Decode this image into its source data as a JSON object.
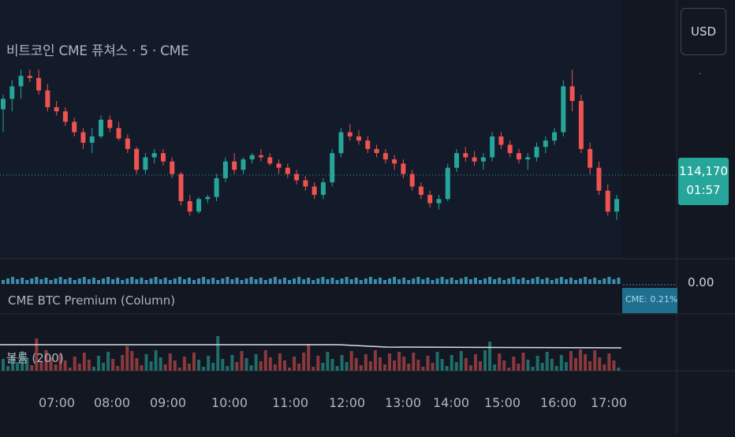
{
  "symbol_title": "비트코인 CME 퓨쳐스 · 5 · CME",
  "currency_button": "USD",
  "last_price": "114,170",
  "countdown": "01:57",
  "premium_indicator": {
    "label": "CME BTC Premium (Column)",
    "tag": "CME: 0.21%",
    "value": "0.00"
  },
  "volume_indicator": {
    "label": "볼륨 (200)"
  },
  "colors": {
    "background": "#131722",
    "up": "#26a69a",
    "down": "#ef5350",
    "premium": "#3a8fb0"
  },
  "chart_data": {
    "type": "candlestick",
    "x_ticks": [
      "07:00",
      "08:00",
      "09:00",
      "10:00",
      "11:00",
      "12:00",
      "13:00",
      "14:00",
      "15:00",
      "16:00",
      "17:00"
    ],
    "last_value": 114170,
    "candles_ohlc_relative": [
      [
        171,
        178,
        160,
        176
      ],
      [
        176,
        185,
        170,
        182
      ],
      [
        182,
        190,
        176,
        187
      ],
      [
        187,
        190,
        184,
        186
      ],
      [
        186,
        190,
        178,
        180
      ],
      [
        180,
        183,
        170,
        172
      ],
      [
        172,
        175,
        168,
        170
      ],
      [
        170,
        172,
        163,
        165
      ],
      [
        165,
        167,
        158,
        160
      ],
      [
        160,
        162,
        152,
        155
      ],
      [
        155,
        162,
        150,
        158
      ],
      [
        158,
        168,
        157,
        166
      ],
      [
        166,
        168,
        160,
        162
      ],
      [
        162,
        165,
        156,
        157
      ],
      [
        157,
        159,
        150,
        152
      ],
      [
        152,
        153,
        140,
        142
      ],
      [
        142,
        150,
        140,
        148
      ],
      [
        148,
        152,
        145,
        150
      ],
      [
        150,
        152,
        144,
        146
      ],
      [
        146,
        148,
        138,
        140
      ],
      [
        140,
        141,
        125,
        127
      ],
      [
        127,
        130,
        120,
        122
      ],
      [
        122,
        129,
        121,
        128
      ],
      [
        128,
        130,
        126,
        129
      ],
      [
        129,
        140,
        127,
        138
      ],
      [
        138,
        148,
        136,
        146
      ],
      [
        146,
        150,
        140,
        142
      ],
      [
        142,
        148,
        140,
        147
      ],
      [
        147,
        150,
        145,
        149
      ],
      [
        149,
        152,
        146,
        148
      ],
      [
        148,
        150,
        144,
        145
      ],
      [
        145,
        147,
        140,
        143
      ],
      [
        143,
        145,
        138,
        140
      ],
      [
        140,
        142,
        135,
        137
      ],
      [
        137,
        139,
        132,
        134
      ],
      [
        134,
        136,
        128,
        130
      ],
      [
        130,
        138,
        128,
        136
      ],
      [
        136,
        152,
        134,
        150
      ],
      [
        150,
        162,
        148,
        160
      ],
      [
        160,
        164,
        156,
        158
      ],
      [
        158,
        161,
        154,
        156
      ],
      [
        156,
        158,
        150,
        152
      ],
      [
        152,
        154,
        148,
        150
      ],
      [
        150,
        152,
        145,
        147
      ],
      [
        147,
        149,
        142,
        145
      ],
      [
        145,
        147,
        138,
        140
      ],
      [
        140,
        142,
        132,
        134
      ],
      [
        134,
        136,
        128,
        130
      ],
      [
        130,
        132,
        124,
        126
      ],
      [
        126,
        130,
        123,
        128
      ],
      [
        128,
        145,
        127,
        143
      ],
      [
        143,
        152,
        141,
        150
      ],
      [
        150,
        153,
        146,
        148
      ],
      [
        148,
        151,
        144,
        146
      ],
      [
        146,
        150,
        142,
        148
      ],
      [
        148,
        160,
        146,
        158
      ],
      [
        158,
        160,
        152,
        154
      ],
      [
        154,
        156,
        148,
        150
      ],
      [
        150,
        152,
        145,
        147
      ],
      [
        147,
        150,
        142,
        148
      ],
      [
        148,
        155,
        146,
        153
      ],
      [
        153,
        158,
        150,
        156
      ],
      [
        156,
        162,
        154,
        160
      ],
      [
        160,
        185,
        158,
        182
      ],
      [
        182,
        190,
        170,
        175
      ],
      [
        175,
        178,
        150,
        152
      ],
      [
        152,
        155,
        140,
        143
      ],
      [
        143,
        146,
        130,
        132
      ],
      [
        132,
        135,
        120,
        122
      ],
      [
        122,
        130,
        118,
        128
      ]
    ]
  }
}
